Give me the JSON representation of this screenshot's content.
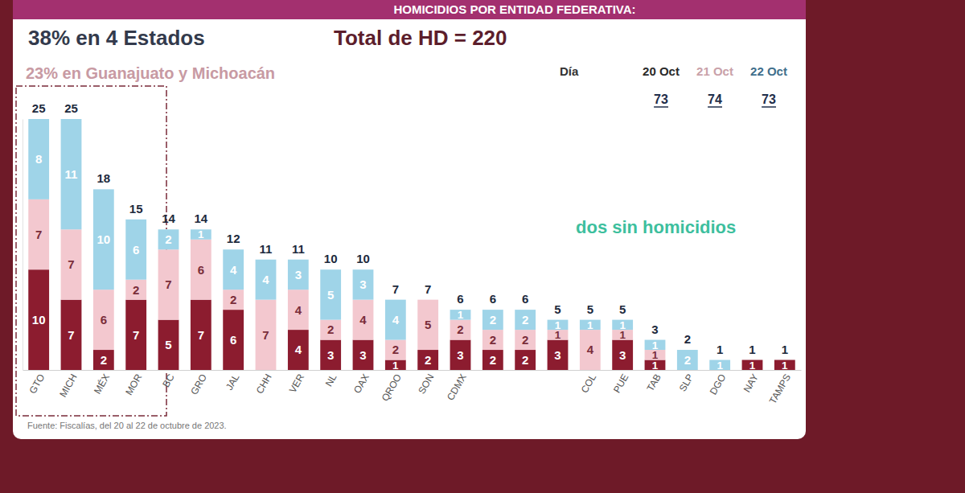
{
  "chart_data": {
    "type": "bar",
    "title": "HOMICIDIOS POR ENTIDAD FEDERATIVA:",
    "subtitle": "Total de HD = 220",
    "annotations": [
      {
        "text": "38% en 4 Estados"
      },
      {
        "text": "23% en Guanajuato y Michoacán"
      },
      {
        "text": "dos sin homicidios"
      }
    ],
    "source": "Fuente: Fiscalías, del 20 al 22 de octubre de 2023.",
    "legend_title": "Día",
    "legend": "top-right",
    "stacked": true,
    "data_labels": true,
    "tick_labels": "x",
    "grid": false,
    "ylim": [
      0,
      25
    ],
    "categories": [
      "GTO",
      "MICH",
      "MÉX",
      "MOR",
      "BC",
      "GRO",
      "JAL",
      "CHH",
      "VER",
      "NL",
      "OAX",
      "QROO",
      "SON",
      "CDMX",
      null,
      null,
      null,
      "COL",
      "PUE",
      "TAB",
      "SLP",
      "DGO",
      "NAY",
      "TAMPS"
    ],
    "series": [
      {
        "name": "20 Oct",
        "color": "#8c1c2f",
        "total": 73,
        "values": [
          10,
          7,
          2,
          7,
          5,
          7,
          6,
          0,
          4,
          3,
          3,
          1,
          2,
          3,
          2,
          2,
          3,
          0,
          3,
          1,
          0,
          0,
          1,
          1
        ]
      },
      {
        "name": "21 Oct",
        "color": "#f3c8cf",
        "total": 74,
        "values": [
          7,
          7,
          6,
          2,
          7,
          6,
          2,
          7,
          4,
          2,
          4,
          2,
          5,
          2,
          2,
          2,
          1,
          4,
          1,
          1,
          0,
          0,
          0,
          0
        ]
      },
      {
        "name": "22 Oct",
        "color": "#9fd4e8",
        "total": 73,
        "values": [
          8,
          11,
          10,
          6,
          2,
          1,
          4,
          4,
          3,
          5,
          3,
          4,
          0,
          1,
          2,
          2,
          1,
          1,
          1,
          1,
          2,
          1,
          0,
          0
        ]
      }
    ],
    "stack_totals": [
      25,
      25,
      18,
      15,
      14,
      14,
      12,
      11,
      11,
      10,
      10,
      7,
      7,
      6,
      6,
      6,
      5,
      5,
      5,
      3,
      2,
      1,
      1,
      1
    ]
  }
}
